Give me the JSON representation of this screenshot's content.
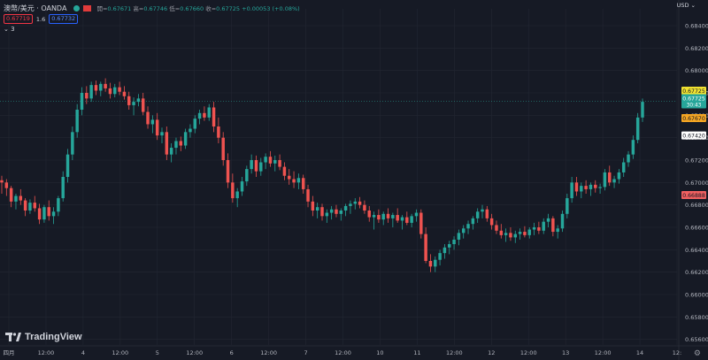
{
  "header": {
    "symbol": "澳幣/美元 · OANDA",
    "open_label": "開=",
    "open": "0.67671",
    "high_label": "高=",
    "high": "0.67746",
    "low_label": "低=",
    "low": "0.67660",
    "close_label": "收=",
    "close": "0.67725",
    "change": "+0.00053 (+0.08%)",
    "sell_price": "0.67719",
    "spread": "1.6",
    "buy_price": "0.67732",
    "indicators_toggle": "3",
    "currency": "USD"
  },
  "branding": {
    "name": "TradingView"
  },
  "colors": {
    "up": "#26a69a",
    "down": "#ef5350",
    "bg": "#161a25",
    "grid": "#232733"
  },
  "icons": {
    "settings": "gear-icon",
    "logo": "tradingview-logo-icon",
    "chevron": "chevron-down-icon"
  },
  "chart_data": {
    "type": "candlestick",
    "y_ticks": [
      "0.68400",
      "0.68200",
      "0.68000",
      "0.67800",
      "0.67600",
      "0.67400",
      "0.67200",
      "0.67000",
      "0.66800",
      "0.66600",
      "0.66400",
      "0.66200",
      "0.66000",
      "0.65800",
      "0.65600"
    ],
    "x_ticks": [
      "四月",
      "12:00",
      "4",
      "12:00",
      "5",
      "12:00",
      "6",
      "12:00",
      "7",
      "12:00",
      "10",
      "11",
      "12:00",
      "12",
      "12:00",
      "13",
      "12:00",
      "14",
      "12:"
    ],
    "ylim": [
      0.6555,
      0.6855
    ],
    "price_labels": [
      {
        "text": "0.67725",
        "kind": "ask",
        "color": "#f0e130",
        "price": 0.67725
      },
      {
        "text": "0.67725",
        "sub": "30:43",
        "kind": "last",
        "color": "#26a69a",
        "price": 0.67725
      },
      {
        "text": "0.67670",
        "kind": "bid",
        "color": "#f5a623",
        "price": 0.6767
      },
      {
        "text": "0.67420",
        "kind": "marker",
        "color": "#ffffff",
        "price": 0.6742
      },
      {
        "text": "0.66888",
        "kind": "marker",
        "color": "#f06060",
        "price": 0.66888
      }
    ],
    "candles": [
      [
        0.6702,
        0.6706,
        0.669,
        0.67
      ],
      [
        0.67,
        0.6703,
        0.6688,
        0.6695
      ],
      [
        0.6695,
        0.6697,
        0.6678,
        0.6683
      ],
      [
        0.6683,
        0.669,
        0.6676,
        0.6688
      ],
      [
        0.6688,
        0.6694,
        0.668,
        0.6684
      ],
      [
        0.6684,
        0.6686,
        0.667,
        0.6675
      ],
      [
        0.6675,
        0.6685,
        0.6672,
        0.6682
      ],
      [
        0.6682,
        0.6688,
        0.6674,
        0.6677
      ],
      [
        0.6677,
        0.6681,
        0.6663,
        0.6667
      ],
      [
        0.6667,
        0.668,
        0.6664,
        0.6678
      ],
      [
        0.6678,
        0.6684,
        0.6666,
        0.667
      ],
      [
        0.667,
        0.6678,
        0.6663,
        0.6674
      ],
      [
        0.6674,
        0.6688,
        0.667,
        0.6686
      ],
      [
        0.6686,
        0.671,
        0.6683,
        0.6705
      ],
      [
        0.6705,
        0.673,
        0.67,
        0.6725
      ],
      [
        0.6725,
        0.675,
        0.672,
        0.6745
      ],
      [
        0.6745,
        0.677,
        0.674,
        0.6765
      ],
      [
        0.6765,
        0.6785,
        0.676,
        0.678
      ],
      [
        0.678,
        0.6786,
        0.677,
        0.6775
      ],
      [
        0.6775,
        0.679,
        0.6772,
        0.6787
      ],
      [
        0.6787,
        0.6791,
        0.6778,
        0.6782
      ],
      [
        0.6782,
        0.679,
        0.6777,
        0.6788
      ],
      [
        0.6788,
        0.6793,
        0.6781,
        0.6784
      ],
      [
        0.6784,
        0.6789,
        0.6775,
        0.6779
      ],
      [
        0.6779,
        0.6788,
        0.6776,
        0.6785
      ],
      [
        0.6785,
        0.679,
        0.6778,
        0.6781
      ],
      [
        0.6781,
        0.6786,
        0.6774,
        0.6777
      ],
      [
        0.6777,
        0.6781,
        0.6765,
        0.6769
      ],
      [
        0.6769,
        0.6776,
        0.676,
        0.6772
      ],
      [
        0.6772,
        0.6779,
        0.6768,
        0.6775
      ],
      [
        0.6775,
        0.678,
        0.676,
        0.6763
      ],
      [
        0.6763,
        0.6768,
        0.6748,
        0.6752
      ],
      [
        0.6752,
        0.676,
        0.6744,
        0.6756
      ],
      [
        0.6756,
        0.6762,
        0.6738,
        0.6742
      ],
      [
        0.6742,
        0.6749,
        0.6735,
        0.6745
      ],
      [
        0.6745,
        0.675,
        0.672,
        0.6725
      ],
      [
        0.6725,
        0.6735,
        0.6718,
        0.6731
      ],
      [
        0.6731,
        0.674,
        0.6725,
        0.6737
      ],
      [
        0.6737,
        0.6741,
        0.6728,
        0.6733
      ],
      [
        0.6733,
        0.6748,
        0.673,
        0.6745
      ],
      [
        0.6745,
        0.6752,
        0.674,
        0.6748
      ],
      [
        0.6748,
        0.676,
        0.6744,
        0.6757
      ],
      [
        0.6757,
        0.6765,
        0.6752,
        0.6762
      ],
      [
        0.6762,
        0.6768,
        0.6755,
        0.6758
      ],
      [
        0.6758,
        0.677,
        0.6755,
        0.6767
      ],
      [
        0.6767,
        0.6772,
        0.6745,
        0.675
      ],
      [
        0.675,
        0.6758,
        0.6735,
        0.674
      ],
      [
        0.674,
        0.6745,
        0.6715,
        0.672
      ],
      [
        0.672,
        0.6726,
        0.6695,
        0.67
      ],
      [
        0.67,
        0.6708,
        0.6682,
        0.6686
      ],
      [
        0.6686,
        0.6695,
        0.6678,
        0.6692
      ],
      [
        0.6692,
        0.6705,
        0.6688,
        0.6701
      ],
      [
        0.6701,
        0.6715,
        0.6697,
        0.6712
      ],
      [
        0.6712,
        0.6725,
        0.6708,
        0.672
      ],
      [
        0.672,
        0.6724,
        0.6705,
        0.671
      ],
      [
        0.671,
        0.6722,
        0.6706,
        0.6718
      ],
      [
        0.6718,
        0.6726,
        0.6712,
        0.6723
      ],
      [
        0.6723,
        0.6728,
        0.6714,
        0.6717
      ],
      [
        0.6717,
        0.6724,
        0.671,
        0.672
      ],
      [
        0.672,
        0.6725,
        0.6711,
        0.6714
      ],
      [
        0.6714,
        0.6718,
        0.6702,
        0.6706
      ],
      [
        0.6706,
        0.6712,
        0.6698,
        0.6703
      ],
      [
        0.6703,
        0.671,
        0.6695,
        0.67
      ],
      [
        0.67,
        0.6708,
        0.6694,
        0.6704
      ],
      [
        0.6704,
        0.6707,
        0.669,
        0.6694
      ],
      [
        0.6694,
        0.6698,
        0.6678,
        0.6683
      ],
      [
        0.6683,
        0.6688,
        0.667,
        0.6675
      ],
      [
        0.6675,
        0.6682,
        0.6668,
        0.6678
      ],
      [
        0.6678,
        0.6681,
        0.6666,
        0.667
      ],
      [
        0.667,
        0.6676,
        0.6664,
        0.6673
      ],
      [
        0.6673,
        0.6679,
        0.6667,
        0.6676
      ],
      [
        0.6676,
        0.668,
        0.6669,
        0.6672
      ],
      [
        0.6672,
        0.6677,
        0.6666,
        0.6675
      ],
      [
        0.6675,
        0.6681,
        0.667,
        0.6679
      ],
      [
        0.6679,
        0.6684,
        0.6672,
        0.6681
      ],
      [
        0.6681,
        0.6686,
        0.6676,
        0.6683
      ],
      [
        0.6683,
        0.6687,
        0.6677,
        0.668
      ],
      [
        0.668,
        0.6684,
        0.6672,
        0.6675
      ],
      [
        0.6675,
        0.6679,
        0.6665,
        0.6669
      ],
      [
        0.6669,
        0.6674,
        0.6658,
        0.6671
      ],
      [
        0.6671,
        0.6676,
        0.6664,
        0.6667
      ],
      [
        0.6667,
        0.6674,
        0.6662,
        0.6672
      ],
      [
        0.6672,
        0.6677,
        0.6664,
        0.6668
      ],
      [
        0.6668,
        0.6673,
        0.666,
        0.6671
      ],
      [
        0.6671,
        0.6677,
        0.6664,
        0.6666
      ],
      [
        0.6666,
        0.6671,
        0.6658,
        0.6669
      ],
      [
        0.6669,
        0.6674,
        0.6662,
        0.6664
      ],
      [
        0.6664,
        0.6672,
        0.666,
        0.667
      ],
      [
        0.667,
        0.6676,
        0.6665,
        0.6673
      ],
      [
        0.6673,
        0.6676,
        0.665,
        0.6654
      ],
      [
        0.6654,
        0.666,
        0.6628,
        0.663
      ],
      [
        0.663,
        0.6636,
        0.662,
        0.6625
      ],
      [
        0.6625,
        0.6634,
        0.662,
        0.6631
      ],
      [
        0.6631,
        0.664,
        0.6626,
        0.6637
      ],
      [
        0.6637,
        0.6645,
        0.6632,
        0.6642
      ],
      [
        0.6642,
        0.6648,
        0.6636,
        0.6645
      ],
      [
        0.6645,
        0.6652,
        0.664,
        0.6649
      ],
      [
        0.6649,
        0.6658,
        0.6644,
        0.6655
      ],
      [
        0.6655,
        0.6662,
        0.665,
        0.6659
      ],
      [
        0.6659,
        0.6666,
        0.6654,
        0.6663
      ],
      [
        0.6663,
        0.667,
        0.6658,
        0.6668
      ],
      [
        0.6668,
        0.6677,
        0.6664,
        0.6674
      ],
      [
        0.6674,
        0.668,
        0.6668,
        0.6676
      ],
      [
        0.6676,
        0.6679,
        0.6665,
        0.6668
      ],
      [
        0.6668,
        0.6672,
        0.6658,
        0.6662
      ],
      [
        0.6662,
        0.6666,
        0.6654,
        0.6657
      ],
      [
        0.6657,
        0.6663,
        0.665,
        0.6653
      ],
      [
        0.6653,
        0.6659,
        0.6647,
        0.6655
      ],
      [
        0.6655,
        0.666,
        0.6648,
        0.6651
      ],
      [
        0.6651,
        0.6657,
        0.6646,
        0.6654
      ],
      [
        0.6654,
        0.6659,
        0.6649,
        0.6656
      ],
      [
        0.6656,
        0.6661,
        0.6651,
        0.6653
      ],
      [
        0.6653,
        0.666,
        0.665,
        0.6658
      ],
      [
        0.6658,
        0.6664,
        0.6653,
        0.666
      ],
      [
        0.666,
        0.6665,
        0.6654,
        0.6657
      ],
      [
        0.6657,
        0.6668,
        0.6654,
        0.6665
      ],
      [
        0.6665,
        0.6672,
        0.666,
        0.6668
      ],
      [
        0.6668,
        0.667,
        0.6652,
        0.6656
      ],
      [
        0.6656,
        0.6662,
        0.665,
        0.6659
      ],
      [
        0.6659,
        0.6675,
        0.6656,
        0.6672
      ],
      [
        0.6672,
        0.669,
        0.6668,
        0.6686
      ],
      [
        0.6686,
        0.6705,
        0.6682,
        0.67
      ],
      [
        0.67,
        0.6705,
        0.6688,
        0.6692
      ],
      [
        0.6692,
        0.67,
        0.6686,
        0.6697
      ],
      [
        0.6697,
        0.6702,
        0.669,
        0.6694
      ],
      [
        0.6694,
        0.67,
        0.6688,
        0.6698
      ],
      [
        0.6698,
        0.6702,
        0.6691,
        0.6695
      ],
      [
        0.6695,
        0.6699,
        0.669,
        0.6696
      ],
      [
        0.6696,
        0.6712,
        0.6693,
        0.6709
      ],
      [
        0.6709,
        0.6715,
        0.6697,
        0.67
      ],
      [
        0.67,
        0.6706,
        0.6695,
        0.6703
      ],
      [
        0.6703,
        0.6712,
        0.6699,
        0.6709
      ],
      [
        0.6709,
        0.6722,
        0.6705,
        0.6718
      ],
      [
        0.6718,
        0.6728,
        0.6714,
        0.6725
      ],
      [
        0.6725,
        0.6742,
        0.6721,
        0.6738
      ],
      [
        0.6738,
        0.6762,
        0.6735,
        0.6758
      ],
      [
        0.6758,
        0.6775,
        0.6754,
        0.6772
      ]
    ]
  }
}
